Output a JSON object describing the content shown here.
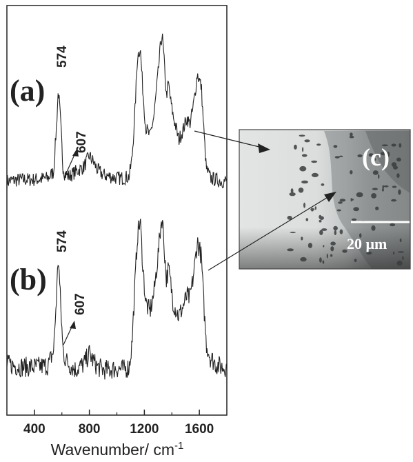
{
  "chart_data": {
    "type": "line",
    "xlabel": "Wavenumber/ cm",
    "xlabel_superscript": "-1",
    "xlim": [
      200,
      1800
    ],
    "x_ticks": [
      400,
      800,
      1200,
      1600
    ],
    "x_tick_labels": [
      "400",
      "800",
      "1200",
      "1600"
    ],
    "y_axis_shown": false,
    "grid": false,
    "series": [
      {
        "panel_label": "(a)",
        "annotations": [
          {
            "text": "574",
            "x": 574
          },
          {
            "text": "607",
            "x": 607
          }
        ],
        "x": [
          200,
          300,
          400,
          500,
          540,
          560,
          574,
          590,
          607,
          620,
          650,
          700,
          760,
          800,
          830,
          860,
          900,
          950,
          1000,
          1050,
          1090,
          1110,
          1130,
          1150,
          1170,
          1190,
          1210,
          1240,
          1270,
          1300,
          1320,
          1330,
          1345,
          1360,
          1375,
          1390,
          1410,
          1430,
          1450,
          1480,
          1510,
          1530,
          1550,
          1570,
          1585,
          1600,
          1615,
          1630,
          1650,
          1680,
          1720,
          1760,
          1800
        ],
        "y": [
          0.04,
          0.05,
          0.05,
          0.06,
          0.1,
          0.38,
          0.62,
          0.42,
          0.14,
          0.09,
          0.07,
          0.1,
          0.13,
          0.2,
          0.16,
          0.11,
          0.08,
          0.07,
          0.06,
          0.06,
          0.07,
          0.18,
          0.45,
          0.83,
          0.88,
          0.6,
          0.38,
          0.32,
          0.45,
          0.72,
          0.92,
          0.96,
          0.78,
          0.58,
          0.66,
          0.55,
          0.45,
          0.38,
          0.3,
          0.36,
          0.44,
          0.4,
          0.48,
          0.6,
          0.72,
          0.68,
          0.63,
          0.4,
          0.12,
          0.06,
          0.05,
          0.04,
          0.04
        ]
      },
      {
        "panel_label": "(b)",
        "annotations": [
          {
            "text": "574",
            "x": 574
          },
          {
            "text": "607",
            "x": 607
          }
        ],
        "x": [
          200,
          300,
          400,
          500,
          540,
          560,
          574,
          590,
          607,
          620,
          650,
          700,
          760,
          800,
          830,
          860,
          900,
          950,
          1000,
          1050,
          1090,
          1110,
          1130,
          1150,
          1170,
          1190,
          1210,
          1240,
          1270,
          1300,
          1320,
          1330,
          1345,
          1360,
          1375,
          1390,
          1410,
          1430,
          1450,
          1480,
          1510,
          1530,
          1550,
          1570,
          1585,
          1600,
          1615,
          1630,
          1650,
          1680,
          1720,
          1760,
          1800
        ],
        "y": [
          0.1,
          0.08,
          0.08,
          0.09,
          0.2,
          0.58,
          0.9,
          0.55,
          0.22,
          0.15,
          0.1,
          0.06,
          0.1,
          0.18,
          0.12,
          0.08,
          0.06,
          0.06,
          0.07,
          0.06,
          0.08,
          0.25,
          0.65,
          1.05,
          1.15,
          0.8,
          0.55,
          0.48,
          0.62,
          0.9,
          1.12,
          1.18,
          0.95,
          0.72,
          0.8,
          0.7,
          0.55,
          0.5,
          0.45,
          0.52,
          0.6,
          0.58,
          0.7,
          0.85,
          1.0,
          0.95,
          0.88,
          0.58,
          0.25,
          0.15,
          0.1,
          0.08,
          0.08
        ]
      }
    ]
  },
  "inset": {
    "label": "(c)",
    "scale_bar_text": "20 μm"
  }
}
